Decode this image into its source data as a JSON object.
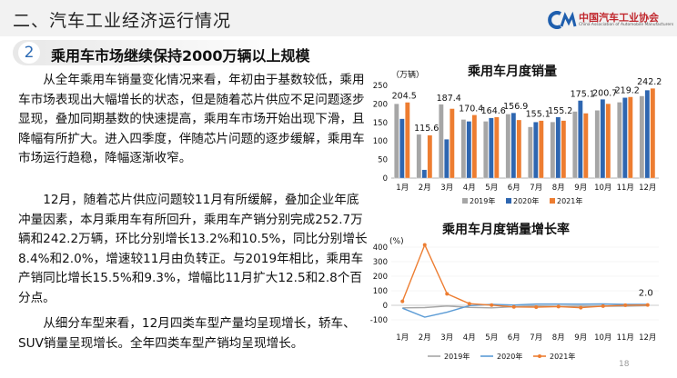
{
  "header": {
    "title": "二、汽车工业经济运行情况",
    "logo_cn": "中国汽车工业协会",
    "logo_en": "China Association of Automobile Manufacturers"
  },
  "section": {
    "number": "2",
    "title": "乘用车市场继续保持2000万辆以上规模"
  },
  "paragraphs": [
    "从全年乘用车销量变化情况来看，年初由于基数较低，乘用车市场表现出大幅增长的状态，但是随着芯片供应不足问题逐步显现，叠加同期基数的快速提高，乘用车市场开始出现下滑，且降幅有所扩大。进入四季度，伴随芯片问题的逐步缓解，乘用车市场运行趋稳，降幅逐渐收窄。",
    "12月，随着芯片供应问题较11月有所缓解，叠加企业年底冲量因素，本月乘用车有所回升，乘用车产销分别完成252.7万辆和242.2万辆，环比分别增长13.2%和10.5%，同比分别增长8.4%和2.0%，增速较11月由负转正。与2019年相比，乘用车产销同比增长15.5%和9.3%，增幅比11月扩大12.5和2.8个百分点。",
    "从细分车型来看，12月四类车型产量均呈现增长，轿车、SUV销量呈现增长。全年四类车型产销均呈现增长。"
  ],
  "page_number": "18",
  "watermark": "中国汽车工业协会",
  "chart_data": [
    {
      "type": "bar",
      "title": "乘用车月度销量",
      "ylabel": "（万辆）",
      "categories": [
        "1月",
        "2月",
        "3月",
        "4月",
        "5月",
        "6月",
        "7月",
        "8月",
        "9月",
        "10月",
        "11月",
        "12月"
      ],
      "series": [
        {
          "name": "2019年",
          "color": "#a6a6a6",
          "values": [
            200.5,
            117.9,
            199.1,
            158.1,
            153.2,
            172.8,
            138.2,
            151.5,
            179.9,
            182.8,
            204.7,
            221.6
          ]
        },
        {
          "name": "2020年",
          "color": "#2e66b0",
          "values": [
            160.2,
            22.4,
            104.8,
            153.2,
            162.3,
            176.1,
            151.2,
            164.7,
            209.4,
            212.6,
            217.1,
            237.4
          ]
        },
        {
          "name": "2021年",
          "color": "#ed7d31",
          "values": [
            204.5,
            115.6,
            187.4,
            170.4,
            164.6,
            156.9,
            155.1,
            155.2,
            175.1,
            200.7,
            219.2,
            242.2
          ]
        }
      ],
      "data_labels": [
        "204.5",
        "115.6",
        "187.4",
        "170.4",
        "164.6",
        "156.9",
        "155.1",
        "155.2",
        "175.1",
        "200.7",
        "219.2",
        "242.2"
      ],
      "yticks": [
        0,
        50,
        100,
        150,
        200,
        250
      ],
      "ylim": [
        0,
        250
      ],
      "legend_position": "bottom",
      "grid": false
    },
    {
      "type": "line",
      "title": "乘用车月度销量增长率",
      "ylabel": "(%)",
      "categories": [
        "1月",
        "2月",
        "3月",
        "4月",
        "5月",
        "6月",
        "7月",
        "8月",
        "9月",
        "10月",
        "11月",
        "12月"
      ],
      "series": [
        {
          "name": "2019年",
          "color": "#a6a6a6",
          "values": [
            -17.7,
            -15.6,
            -5.3,
            -14.6,
            -17.3,
            -10.1,
            -3.9,
            -8.6,
            -6.3,
            -6.1,
            -5.5,
            -2.4
          ]
        },
        {
          "name": "2020年",
          "color": "#5b9bd5",
          "values": [
            -20.1,
            -81.0,
            -47.4,
            -2.6,
            7.0,
            1.8,
            8.8,
            8.6,
            8.0,
            9.7,
            6.5,
            7.1
          ]
        },
        {
          "name": "2021年",
          "color": "#ed7d31",
          "values": [
            27.4,
            416.0,
            78.8,
            11.3,
            1.4,
            -11.0,
            -12.2,
            -8.7,
            -16.5,
            -5.6,
            0.9,
            2.0
          ]
        }
      ],
      "annotation": "2.0",
      "yticks": [
        -100,
        0,
        100,
        200,
        300,
        400
      ],
      "ylim": [
        -100,
        400
      ],
      "legend_position": "bottom",
      "grid": true
    }
  ]
}
